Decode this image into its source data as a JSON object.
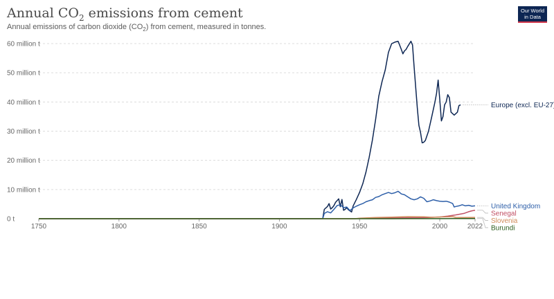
{
  "header": {
    "title_main": "Annual CO",
    "title_sub": "2",
    "title_rest": " emissions from cement",
    "subtitle_main": "Annual emissions of carbon dioxide (CO",
    "subtitle_sub": "2",
    "subtitle_rest": ") from cement, measured in tonnes.",
    "logo_line1": "Our World",
    "logo_line2": "in Data",
    "logo_color": "#0d2653",
    "logo_accent": "#d1364a"
  },
  "chart_data": {
    "type": "line",
    "xlim": [
      1750,
      2022
    ],
    "ylim": [
      0,
      60000000
    ],
    "x_ticks": [
      {
        "value": 1750,
        "label": "1750"
      },
      {
        "value": 1800,
        "label": "1800"
      },
      {
        "value": 1850,
        "label": "1850"
      },
      {
        "value": 1900,
        "label": "1900"
      },
      {
        "value": 1950,
        "label": "1950"
      },
      {
        "value": 2000,
        "label": "2000"
      },
      {
        "value": 2022,
        "label": "2022"
      }
    ],
    "y_ticks": [
      {
        "value": 0,
        "label": "0 t"
      },
      {
        "value": 10000000,
        "label": "10 million t"
      },
      {
        "value": 20000000,
        "label": "20 million t"
      },
      {
        "value": 30000000,
        "label": "30 million t"
      },
      {
        "value": 40000000,
        "label": "40 million t"
      },
      {
        "value": 50000000,
        "label": "50 million t"
      },
      {
        "value": 60000000,
        "label": "60 million t"
      }
    ],
    "grid": "horizontal-dashed",
    "legend": "right-inline",
    "series": [
      {
        "name": "Europe (excl. EU-27)",
        "color": "#0d2653",
        "points": [
          [
            1750,
            0
          ],
          [
            1927,
            0
          ],
          [
            1928,
            3200000
          ],
          [
            1930,
            4200000
          ],
          [
            1931,
            5200000
          ],
          [
            1932,
            3300000
          ],
          [
            1933,
            3800000
          ],
          [
            1934,
            4500000
          ],
          [
            1935,
            5600000
          ],
          [
            1936,
            6200000
          ],
          [
            1937,
            6800000
          ],
          [
            1938,
            4100000
          ],
          [
            1939,
            6600000
          ],
          [
            1940,
            2900000
          ],
          [
            1941,
            3200000
          ],
          [
            1942,
            3800000
          ],
          [
            1943,
            3100000
          ],
          [
            1944,
            2700000
          ],
          [
            1945,
            2300000
          ],
          [
            1946,
            4400000
          ],
          [
            1948,
            6600000
          ],
          [
            1950,
            9000000
          ],
          [
            1952,
            12000000
          ],
          [
            1954,
            16000000
          ],
          [
            1956,
            21000000
          ],
          [
            1958,
            27000000
          ],
          [
            1960,
            34000000
          ],
          [
            1962,
            42000000
          ],
          [
            1964,
            47000000
          ],
          [
            1966,
            51000000
          ],
          [
            1968,
            57000000
          ],
          [
            1970,
            60000000
          ],
          [
            1972,
            60500000
          ],
          [
            1974,
            60800000
          ],
          [
            1975,
            59500000
          ],
          [
            1976,
            58000000
          ],
          [
            1977,
            56500000
          ],
          [
            1978,
            57500000
          ],
          [
            1979,
            58000000
          ],
          [
            1980,
            59000000
          ],
          [
            1982,
            60800000
          ],
          [
            1983,
            59500000
          ],
          [
            1984,
            52000000
          ],
          [
            1985,
            45000000
          ],
          [
            1986,
            38000000
          ],
          [
            1987,
            32000000
          ],
          [
            1988,
            29500000
          ],
          [
            1989,
            26000000
          ],
          [
            1990,
            26200000
          ],
          [
            1991,
            26800000
          ],
          [
            1993,
            30000000
          ],
          [
            1995,
            35000000
          ],
          [
            1997,
            40000000
          ],
          [
            1998,
            43000000
          ],
          [
            1999,
            47500000
          ],
          [
            2000,
            41000000
          ],
          [
            2001,
            33500000
          ],
          [
            2002,
            35000000
          ],
          [
            2003,
            39000000
          ],
          [
            2004,
            40000000
          ],
          [
            2005,
            42500000
          ],
          [
            2006,
            41500000
          ],
          [
            2007,
            36500000
          ],
          [
            2008,
            36000000
          ],
          [
            2009,
            35500000
          ],
          [
            2010,
            36000000
          ],
          [
            2011,
            36500000
          ],
          [
            2012,
            38800000
          ],
          [
            2013,
            39000000
          ]
        ]
      },
      {
        "name": "United Kingdom",
        "color": "#2c5ea8",
        "points": [
          [
            1750,
            0
          ],
          [
            1927,
            0
          ],
          [
            1928,
            1800000
          ],
          [
            1930,
            2400000
          ],
          [
            1932,
            2000000
          ],
          [
            1934,
            3200000
          ],
          [
            1936,
            4500000
          ],
          [
            1938,
            4800000
          ],
          [
            1940,
            3800000
          ],
          [
            1942,
            4000000
          ],
          [
            1944,
            2800000
          ],
          [
            1946,
            3700000
          ],
          [
            1948,
            4300000
          ],
          [
            1950,
            4800000
          ],
          [
            1952,
            5200000
          ],
          [
            1954,
            5800000
          ],
          [
            1956,
            6200000
          ],
          [
            1958,
            6500000
          ],
          [
            1960,
            7300000
          ],
          [
            1962,
            7600000
          ],
          [
            1964,
            8200000
          ],
          [
            1966,
            8600000
          ],
          [
            1968,
            9000000
          ],
          [
            1970,
            8600000
          ],
          [
            1972,
            8900000
          ],
          [
            1974,
            9400000
          ],
          [
            1975,
            9000000
          ],
          [
            1976,
            8500000
          ],
          [
            1978,
            8200000
          ],
          [
            1980,
            7500000
          ],
          [
            1982,
            6800000
          ],
          [
            1984,
            6500000
          ],
          [
            1986,
            6800000
          ],
          [
            1988,
            7500000
          ],
          [
            1990,
            7000000
          ],
          [
            1992,
            5800000
          ],
          [
            1994,
            6100000
          ],
          [
            1996,
            6500000
          ],
          [
            1998,
            6200000
          ],
          [
            2000,
            6000000
          ],
          [
            2002,
            5900000
          ],
          [
            2004,
            6000000
          ],
          [
            2006,
            5700000
          ],
          [
            2008,
            5200000
          ],
          [
            2009,
            4000000
          ],
          [
            2010,
            4200000
          ],
          [
            2012,
            4400000
          ],
          [
            2014,
            4800000
          ],
          [
            2016,
            4400000
          ],
          [
            2018,
            4600000
          ],
          [
            2020,
            4300000
          ],
          [
            2022,
            4400000
          ]
        ]
      },
      {
        "name": "Senegal",
        "color": "#c15065",
        "points": [
          [
            1750,
            0
          ],
          [
            1947,
            0
          ],
          [
            1950,
            50000
          ],
          [
            1960,
            150000
          ],
          [
            1970,
            250000
          ],
          [
            1980,
            300000
          ],
          [
            1990,
            350000
          ],
          [
            2000,
            600000
          ],
          [
            2005,
            900000
          ],
          [
            2010,
            1300000
          ],
          [
            2015,
            1800000
          ],
          [
            2018,
            2400000
          ],
          [
            2020,
            2700000
          ],
          [
            2022,
            2900000
          ]
        ]
      },
      {
        "name": "Slovenia",
        "color": "#d08b5b",
        "points": [
          [
            1750,
            0
          ],
          [
            1947,
            0
          ],
          [
            1950,
            200000
          ],
          [
            1955,
            300000
          ],
          [
            1960,
            400000
          ],
          [
            1970,
            550000
          ],
          [
            1980,
            700000
          ],
          [
            1990,
            650000
          ],
          [
            1995,
            500000
          ],
          [
            2000,
            600000
          ],
          [
            2005,
            650000
          ],
          [
            2008,
            700000
          ],
          [
            2010,
            450000
          ],
          [
            2015,
            400000
          ],
          [
            2022,
            450000
          ]
        ]
      },
      {
        "name": "Burundi",
        "color": "#2d5e1f",
        "points": [
          [
            1750,
            0
          ],
          [
            1970,
            0
          ],
          [
            1980,
            20000
          ],
          [
            1990,
            30000
          ],
          [
            2000,
            25000
          ],
          [
            2010,
            40000
          ],
          [
            2022,
            60000
          ]
        ]
      }
    ]
  }
}
